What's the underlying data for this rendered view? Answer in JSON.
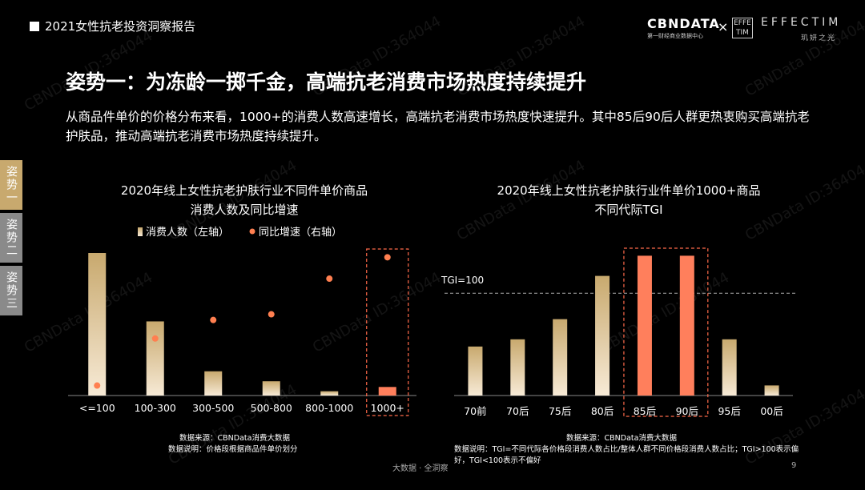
{
  "header": {
    "title": "2021女性抗老投资洞察报告"
  },
  "logos": {
    "cbn": "CBNDATA",
    "cbn_sub": "第一财经商业数据中心",
    "x": "×",
    "effectim_icon": "EFFE TIM",
    "effectim": "EFFECTIM",
    "effectim_sub": "玑妍之光"
  },
  "slide": {
    "title": "姿势一：为冻龄一掷千金，高端抗老消费市场热度持续提升",
    "description": "从商品件单价的价格分布来看，1000+的消费人数高速增长，高端抗老消费市场热度快速提升。其中85后90后人群更热衷购买高端抗老护肤品，推动高端抗老消费市场热度持续提升。"
  },
  "side_tabs": [
    "姿势一",
    "姿势二",
    "姿势三"
  ],
  "watermark": "CBNData ID:364044",
  "colors": {
    "bar_gradient_top": "#c8a96e",
    "bar_gradient_bottom": "#f7ead6",
    "highlight": "#ff7f5c",
    "dot": "#ff7f50",
    "dash_box": "#ff6a4a"
  },
  "chart_data": [
    {
      "type": "bar",
      "title": "2020年线上女性抗老护肤行业不同件单价商品",
      "subtitle": "消费人数及同比增速",
      "categories": [
        "<=100",
        "100-300",
        "300-500",
        "500-800",
        "800-1000",
        "1000+"
      ],
      "legend": [
        "消费人数（左轴）",
        "同比增速（右轴）"
      ],
      "legend_position": "top",
      "series": [
        {
          "name": "消费人数（左轴）",
          "type": "bar",
          "values": [
            100,
            52,
            17,
            10,
            3,
            6
          ]
        },
        {
          "name": "同比增速（右轴）",
          "type": "scatter",
          "values": [
            7,
            40,
            53,
            57,
            82,
            97
          ]
        }
      ],
      "highlight_category": "1000+",
      "note_source": "数据来源：CBNData消费大数据",
      "note_desc": "数据说明：价格段根据商品件单价划分"
    },
    {
      "type": "bar",
      "title": "2020年线上女性抗老护肤行业件单价1000+商品",
      "subtitle": "不同代际TGI",
      "categories": [
        "70前",
        "70后",
        "75后",
        "80后",
        "85后",
        "90后",
        "95后",
        "00后"
      ],
      "values": [
        34,
        39,
        53,
        83,
        97,
        97,
        39,
        7
      ],
      "reference_line": {
        "label": "TGI=100",
        "value": 71
      },
      "highlight_categories": [
        "85后",
        "90后"
      ],
      "note_source": "数据来源：CBNData消费大数据",
      "note_desc": "数据说明：TGI=不同代际各价格段消费人数占比/整体人群不同价格段消费人数占比；TGI>100表示偏好，TGI<100表示不偏好"
    }
  ],
  "footer": {
    "text": "大数据 · 全洞察",
    "page": "9"
  }
}
